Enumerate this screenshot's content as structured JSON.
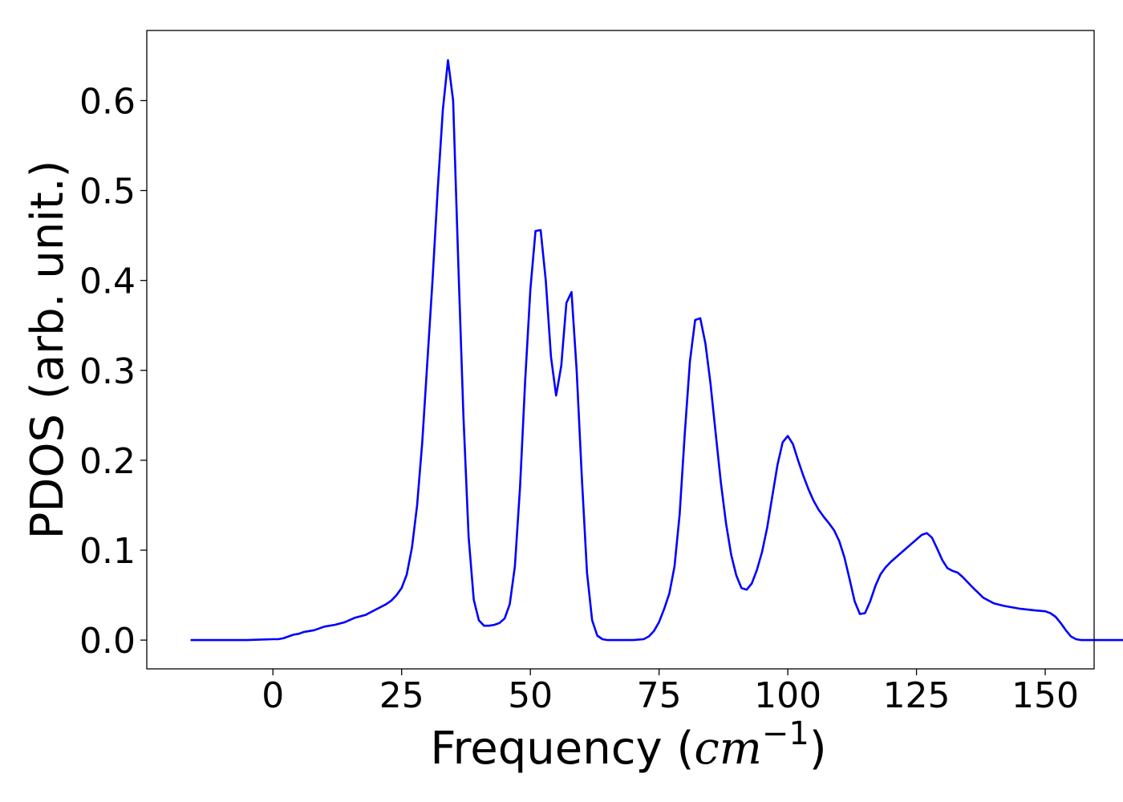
{
  "chart_data": {
    "type": "line",
    "title": "",
    "xlabel": {
      "prefix": "Frequency (",
      "unit_base": "cm",
      "unit_exp": "−1",
      "suffix": ")"
    },
    "ylabel": "PDOS (arb. unit.)",
    "xlim": [
      -24.5,
      159.5
    ],
    "ylim": [
      -0.032,
      0.678
    ],
    "grid": false,
    "legend": "none",
    "xticks": [
      {
        "value": 0,
        "label": "0"
      },
      {
        "value": 25,
        "label": "25"
      },
      {
        "value": 50,
        "label": "50"
      },
      {
        "value": 75,
        "label": "75"
      },
      {
        "value": 100,
        "label": "100"
      },
      {
        "value": 125,
        "label": "125"
      },
      {
        "value": 150,
        "label": "150"
      }
    ],
    "yticks": [
      {
        "value": 0.0,
        "label": "0.0"
      },
      {
        "value": 0.1,
        "label": "0.1"
      },
      {
        "value": 0.2,
        "label": "0.2"
      },
      {
        "value": 0.3,
        "label": "0.3"
      },
      {
        "value": 0.4,
        "label": "0.4"
      },
      {
        "value": 0.5,
        "label": "0.5"
      },
      {
        "value": 0.6,
        "label": "0.6"
      }
    ],
    "series": [
      {
        "color": "#0000ff",
        "points": [
          [
            -16,
            0.0
          ],
          [
            -5,
            0.0
          ],
          [
            0,
            0.001
          ],
          [
            1,
            0.001
          ],
          [
            2,
            0.002
          ],
          [
            3,
            0.004
          ],
          [
            4,
            0.006
          ],
          [
            5,
            0.007
          ],
          [
            6,
            0.009
          ],
          [
            8,
            0.011
          ],
          [
            10,
            0.015
          ],
          [
            12,
            0.017
          ],
          [
            14,
            0.02
          ],
          [
            16,
            0.025
          ],
          [
            18,
            0.028
          ],
          [
            20,
            0.034
          ],
          [
            22,
            0.04
          ],
          [
            23,
            0.044
          ],
          [
            24,
            0.05
          ],
          [
            25,
            0.058
          ],
          [
            26,
            0.073
          ],
          [
            27,
            0.103
          ],
          [
            28,
            0.15
          ],
          [
            29,
            0.22
          ],
          [
            30,
            0.31
          ],
          [
            31,
            0.4
          ],
          [
            32,
            0.5
          ],
          [
            33,
            0.59
          ],
          [
            34,
            0.645
          ],
          [
            35,
            0.6
          ],
          [
            36,
            0.42
          ],
          [
            37,
            0.25
          ],
          [
            38,
            0.115
          ],
          [
            39,
            0.045
          ],
          [
            40,
            0.022
          ],
          [
            41,
            0.016
          ],
          [
            42,
            0.016
          ],
          [
            43,
            0.017
          ],
          [
            44,
            0.019
          ],
          [
            45,
            0.024
          ],
          [
            46,
            0.04
          ],
          [
            47,
            0.082
          ],
          [
            48,
            0.17
          ],
          [
            49,
            0.29
          ],
          [
            50,
            0.39
          ],
          [
            51,
            0.455
          ],
          [
            52,
            0.456
          ],
          [
            53,
            0.4
          ],
          [
            54,
            0.315
          ],
          [
            55,
            0.272
          ],
          [
            56,
            0.305
          ],
          [
            57,
            0.375
          ],
          [
            58,
            0.387
          ],
          [
            59,
            0.3
          ],
          [
            60,
            0.18
          ],
          [
            61,
            0.075
          ],
          [
            62,
            0.022
          ],
          [
            63,
            0.005
          ],
          [
            64,
            0.001
          ],
          [
            65,
            0.0
          ],
          [
            70,
            0.0
          ],
          [
            72,
            0.001
          ],
          [
            73,
            0.004
          ],
          [
            74,
            0.01
          ],
          [
            75,
            0.02
          ],
          [
            76,
            0.035
          ],
          [
            77,
            0.052
          ],
          [
            78,
            0.082
          ],
          [
            79,
            0.14
          ],
          [
            80,
            0.23
          ],
          [
            81,
            0.31
          ],
          [
            82,
            0.356
          ],
          [
            83,
            0.358
          ],
          [
            84,
            0.33
          ],
          [
            85,
            0.285
          ],
          [
            86,
            0.23
          ],
          [
            87,
            0.175
          ],
          [
            88,
            0.13
          ],
          [
            89,
            0.095
          ],
          [
            90,
            0.072
          ],
          [
            91,
            0.058
          ],
          [
            92,
            0.056
          ],
          [
            93,
            0.063
          ],
          [
            94,
            0.078
          ],
          [
            95,
            0.098
          ],
          [
            96,
            0.125
          ],
          [
            97,
            0.16
          ],
          [
            98,
            0.195
          ],
          [
            99,
            0.22
          ],
          [
            100,
            0.227
          ],
          [
            101,
            0.218
          ],
          [
            102,
            0.2
          ],
          [
            103,
            0.183
          ],
          [
            104,
            0.168
          ],
          [
            105,
            0.155
          ],
          [
            106,
            0.145
          ],
          [
            107,
            0.137
          ],
          [
            108,
            0.13
          ],
          [
            109,
            0.122
          ],
          [
            110,
            0.11
          ],
          [
            111,
            0.092
          ],
          [
            112,
            0.068
          ],
          [
            113,
            0.043
          ],
          [
            114,
            0.029
          ],
          [
            115,
            0.03
          ],
          [
            116,
            0.043
          ],
          [
            117,
            0.06
          ],
          [
            118,
            0.073
          ],
          [
            119,
            0.081
          ],
          [
            120,
            0.087
          ],
          [
            122,
            0.097
          ],
          [
            124,
            0.107
          ],
          [
            126,
            0.117
          ],
          [
            127,
            0.119
          ],
          [
            128,
            0.114
          ],
          [
            129,
            0.102
          ],
          [
            130,
            0.089
          ],
          [
            131,
            0.08
          ],
          [
            132,
            0.077
          ],
          [
            133,
            0.075
          ],
          [
            134,
            0.07
          ],
          [
            136,
            0.058
          ],
          [
            138,
            0.047
          ],
          [
            140,
            0.041
          ],
          [
            142,
            0.038
          ],
          [
            145,
            0.035
          ],
          [
            148,
            0.033
          ],
          [
            150,
            0.032
          ],
          [
            151,
            0.03
          ],
          [
            152,
            0.026
          ],
          [
            153,
            0.019
          ],
          [
            154,
            0.011
          ],
          [
            155,
            0.004
          ],
          [
            156,
            0.001
          ],
          [
            157,
            0.0
          ],
          [
            160,
            0.0
          ],
          [
            166,
            0.0
          ]
        ]
      }
    ]
  }
}
